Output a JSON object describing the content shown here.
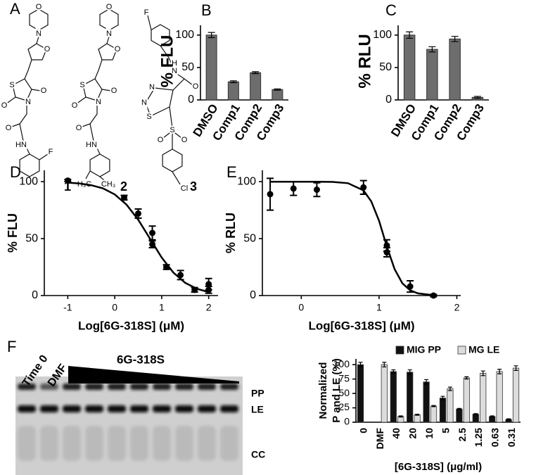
{
  "panels": [
    "A",
    "B",
    "C",
    "D",
    "E",
    "F"
  ],
  "structures": [
    {
      "label": "1",
      "atoms": [
        "O",
        "N",
        "O",
        "S",
        "N",
        "O",
        "O",
        "O",
        "HN",
        "F"
      ]
    },
    {
      "label": "2",
      "atoms": [
        "O",
        "N",
        "O",
        "S",
        "N",
        "O",
        "O",
        "O",
        "HN",
        "H₃C",
        "CH₃"
      ]
    },
    {
      "label": "3",
      "atoms": [
        "F",
        "H",
        "N",
        "O",
        "N",
        "N",
        "S",
        "S",
        "O",
        "O",
        "Cl"
      ]
    }
  ],
  "gel": {
    "lanes": [
      "Time 0",
      "DMF"
    ],
    "treatment": "6G-318S",
    "bands": [
      "PP",
      "LE",
      "CC"
    ]
  },
  "chart_data": [
    {
      "type": "bar",
      "ylabel": "% FLU",
      "categories": [
        "DMSO",
        "Comp1",
        "Comp2",
        "Comp3"
      ],
      "values": [
        100,
        28,
        42,
        16
      ],
      "errors": [
        4,
        1.5,
        1.5,
        1
      ],
      "color": "#6d6d6d",
      "ylim": [
        0,
        115
      ],
      "yticks": [
        0,
        50,
        100
      ]
    },
    {
      "type": "bar",
      "ylabel": "% RLU",
      "categories": [
        "DMSO",
        "Comp1",
        "Comp2",
        "Comp3"
      ],
      "values": [
        100,
        78,
        94,
        4
      ],
      "errors": [
        5,
        4,
        4,
        1.5
      ],
      "color": "#6d6d6d",
      "ylim": [
        0,
        115
      ],
      "yticks": [
        0,
        50,
        100
      ]
    },
    {
      "type": "scatter",
      "ylabel": "% FLU",
      "xlabel": "Log[6G-318S] (μM)",
      "x": [
        -1,
        0.2,
        0.5,
        0.8,
        0.8,
        1.1,
        1.4,
        1.7,
        2.0,
        2.0
      ],
      "values": [
        101,
        86,
        72,
        55,
        45,
        25,
        18,
        5,
        10,
        5
      ],
      "errors": [
        1,
        2,
        4,
        6,
        3,
        2,
        4,
        2,
        5,
        3
      ],
      "fit": {
        "x": [
          -1,
          -0.75,
          -0.5,
          -0.25,
          0,
          0.25,
          0.5,
          0.75,
          1.0,
          1.25,
          1.5,
          1.75,
          2.0
        ],
        "values": [
          99.2,
          98.4,
          96.9,
          94.1,
          88.8,
          79.9,
          66.6,
          50,
          33.4,
          20.1,
          11.2,
          5.9,
          3.1
        ]
      },
      "color": "#000000",
      "xlim": [
        -1.5,
        2.2
      ],
      "xticks": [
        -1,
        0,
        1,
        2
      ],
      "ylim": [
        0,
        110
      ],
      "yticks": [
        0,
        50,
        100
      ]
    },
    {
      "type": "scatter",
      "ylabel": "% RLU",
      "xlabel": "Log[6G-318S] (μM)",
      "x": [
        -0.4,
        -0.1,
        0.2,
        0.8,
        1.1,
        1.1,
        1.4,
        1.7
      ],
      "values": [
        89,
        94,
        93,
        95,
        44,
        38,
        8,
        0
      ],
      "errors": [
        14,
        6,
        6,
        6,
        5,
        4,
        5,
        1
      ],
      "fit": {
        "x": [
          -0.4,
          -0.2,
          0,
          0.2,
          0.4,
          0.6,
          0.8,
          0.9,
          1.0,
          1.1,
          1.2,
          1.3,
          1.4,
          1.5,
          1.7
        ],
        "values": [
          100,
          100,
          100,
          100,
          99.8,
          98.7,
          92.3,
          82.7,
          65.6,
          43.1,
          23.2,
          10.7,
          4.6,
          1.9,
          0.3
        ]
      },
      "color": "#000000",
      "xlim": [
        -0.5,
        2.05
      ],
      "xticks": [
        0,
        1,
        2
      ],
      "ylim": [
        0,
        110
      ],
      "yticks": [
        0,
        50,
        100
      ]
    },
    {
      "type": "bar",
      "ylabel": [
        "Normalized",
        "P and LE (%)"
      ],
      "xlabel": "[6G-318S] (μg/ml)",
      "categories": [
        "0",
        "DMF",
        "40",
        "20",
        "10",
        "5",
        "2.5",
        "1.25",
        "0.63",
        "0.31"
      ],
      "series": [
        {
          "name": "MIG PP",
          "color": "#111111",
          "values": [
            100,
            null,
            88,
            87,
            70,
            42,
            23,
            14,
            10,
            5
          ],
          "errors": [
            4,
            null,
            3,
            4,
            4,
            3,
            1,
            1,
            1,
            1
          ]
        },
        {
          "name": "MG LE",
          "color": "#dcdcdc",
          "values": [
            null,
            100,
            10,
            13,
            28,
            58,
            77,
            85,
            88,
            94
          ],
          "errors": [
            null,
            4,
            1,
            1,
            1,
            3,
            2,
            4,
            4,
            4
          ]
        }
      ],
      "legend": "top",
      "ylim": [
        0,
        110
      ],
      "yticks": [
        0,
        25,
        50,
        75,
        100
      ]
    }
  ]
}
